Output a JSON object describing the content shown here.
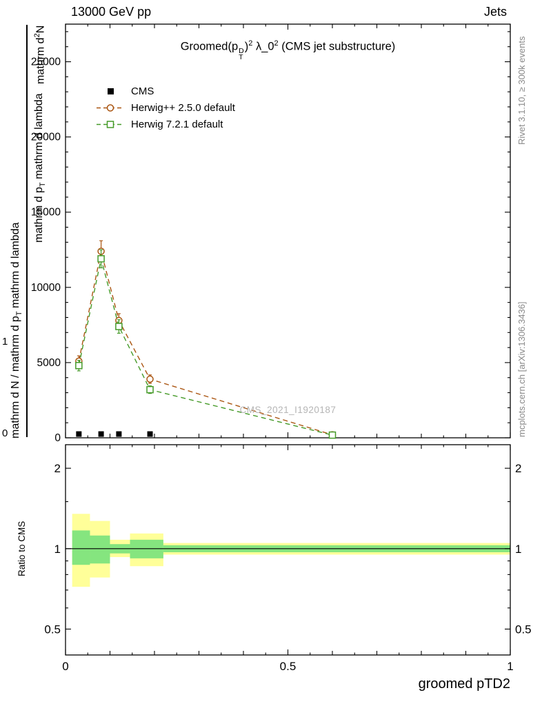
{
  "header": {
    "left": "13000 GeV pp",
    "right": "Jets"
  },
  "main": {
    "title": {
      "prefix": "Groomed(p",
      "p_sup": "D",
      "p_sub": "T",
      "close": ")",
      "sup1": "2",
      "lambda_part": " λ_0",
      "sup2": "2",
      "suffix": " (CMS jet substructure)"
    },
    "ylabel": {
      "outer_a": "mathrm d N / mathrm d p",
      "outer_sub": "T",
      "outer_b": " mathrm d lambda",
      "num_a": "mathrm d",
      "num_sup": "2",
      "num_b": "N",
      "den_a": "mathrm d p",
      "den_sub": "T",
      "den_b": " mathrm d lambda",
      "stray_one": "1",
      "stray_zero": "0"
    },
    "watermark": "CMS_2021_I1920187"
  },
  "legend": [
    {
      "label": "CMS",
      "color": "#000000",
      "marker": "filled-square"
    },
    {
      "label": "Herwig++ 2.5.0 default",
      "color": "#aa5511",
      "marker": "open-circle",
      "line": "dashed"
    },
    {
      "label": "Herwig 7.2.1 default",
      "color": "#459a28",
      "marker": "open-square",
      "line": "dashed"
    }
  ],
  "margin_notes": {
    "top_right": "Rivet 3.1.10, ≥ 300k events",
    "bottom_right": "mcplots.cern.ch [arXiv:1306.3436]"
  },
  "ratio": {
    "ylabel": "Ratio to CMS"
  },
  "xaxis_label": "groomed pTD2",
  "chart_data": {
    "type": "line",
    "title": "Groomed(p_T^D)^2 λ_0^2 (CMS jet substructure)",
    "xlabel": "groomed pTD2",
    "ylabel": "mathrm d^2 N / mathrm d p_T mathrm d lambda",
    "legend_position": "top-left",
    "xaxis": {
      "lim": [
        0,
        1
      ],
      "ticks": [
        0,
        0.5,
        1
      ],
      "tick_labels": [
        "0",
        "0.5",
        "1"
      ],
      "minor_step": 0.05
    },
    "main_panel": {
      "ylim": [
        0,
        27500
      ],
      "yticks": [
        0,
        5000,
        10000,
        15000,
        20000,
        25000
      ],
      "yminor_step": 1000,
      "series": [
        {
          "name": "CMS",
          "marker": "filled-square",
          "color": "#000000",
          "x": [
            0.03,
            0.08,
            0.12,
            0.19
          ],
          "y": [
            250,
            250,
            250,
            250
          ]
        },
        {
          "name": "Herwig++ 2.5.0 default",
          "marker": "open-circle",
          "color": "#aa5511",
          "dashed": true,
          "x": [
            0.03,
            0.08,
            0.12,
            0.19,
            0.6
          ],
          "y": [
            5100,
            12400,
            7800,
            3900,
            200
          ],
          "yerr": [
            350,
            700,
            450,
            280,
            90
          ]
        },
        {
          "name": "Herwig 7.2.1 default",
          "marker": "open-square",
          "color": "#459a28",
          "dashed": true,
          "x": [
            0.03,
            0.08,
            0.12,
            0.19,
            0.6
          ],
          "y": [
            4800,
            11900,
            7400,
            3200,
            180
          ],
          "yerr": [
            350,
            600,
            450,
            250,
            80
          ]
        }
      ]
    },
    "ratio_panel": {
      "scale": "log",
      "ylim": [
        0.4,
        2.45
      ],
      "yticks": [
        0.5,
        1,
        2
      ],
      "ytick_labels": [
        "0.5",
        "1",
        "2"
      ],
      "yminor": [
        0.6,
        0.7,
        0.8,
        0.9,
        1.5
      ],
      "unity_line": 1,
      "bands": {
        "outer_color": "#ffff99",
        "inner_color": "#85e57f",
        "outer": [
          [
            0.015,
            0.055,
            0.72,
            1.35
          ],
          [
            0.055,
            0.1,
            0.78,
            1.27
          ],
          [
            0.1,
            0.145,
            0.93,
            1.08
          ],
          [
            0.145,
            0.22,
            0.86,
            1.14
          ],
          [
            0.22,
            1,
            0.95,
            1.05
          ]
        ],
        "inner": [
          [
            0.015,
            0.055,
            0.87,
            1.17
          ],
          [
            0.055,
            0.1,
            0.88,
            1.12
          ],
          [
            0.1,
            0.145,
            0.96,
            1.04
          ],
          [
            0.145,
            0.22,
            0.92,
            1.08
          ],
          [
            0.22,
            1,
            0.97,
            1.03
          ]
        ]
      }
    }
  }
}
